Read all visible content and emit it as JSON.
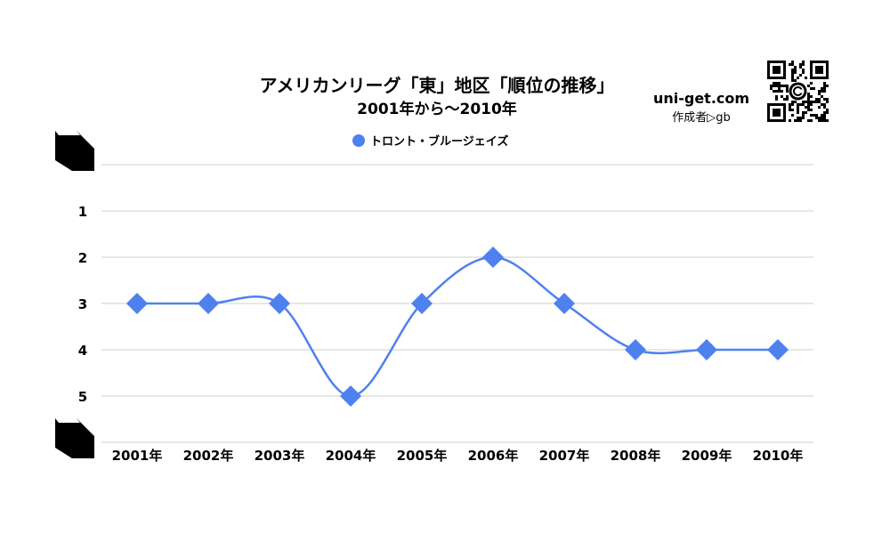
{
  "site": {
    "name": "uni-get.com",
    "author": "作成者▷gb"
  },
  "colors": {
    "series": "#4f81ee",
    "grid": "#cfcfcf",
    "text": "#000000"
  },
  "chart_data": {
    "type": "line",
    "title": "アメリカンリーグ「東」地区「順位の推移」",
    "subtitle": "2001年から〜2010年",
    "x": [
      "2001年",
      "2002年",
      "2003年",
      "2004年",
      "2005年",
      "2006年",
      "2007年",
      "2008年",
      "2009年",
      "2010年"
    ],
    "series": [
      {
        "name": "トロント・ブルージェイズ",
        "values": [
          3,
          3,
          3,
          5,
          3,
          2,
          3,
          4,
          4,
          4
        ],
        "marker": "diamond",
        "smooth": true
      }
    ],
    "ylim": [
      0,
      6
    ],
    "y_ticks": [
      1,
      2,
      3,
      4,
      5
    ],
    "y_reversed": true,
    "grid": true,
    "legend": "top-center"
  }
}
